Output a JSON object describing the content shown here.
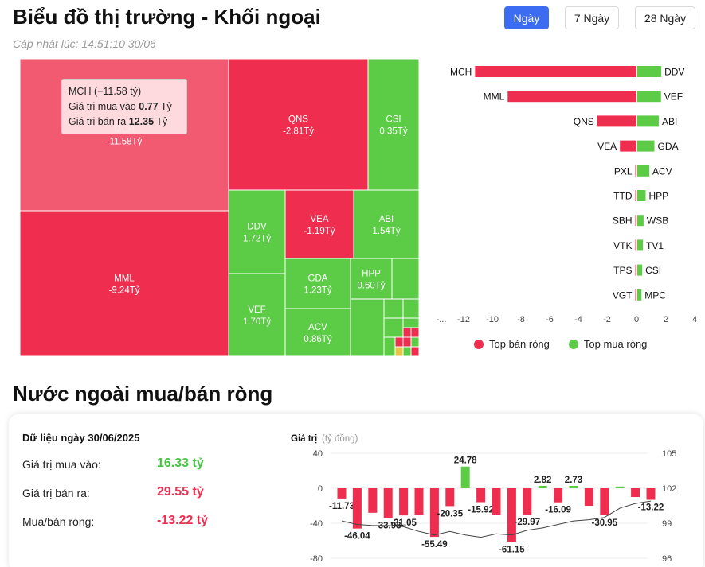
{
  "header": {
    "title": "Biểu đồ thị trường - Khối ngoại",
    "updated": "Cập nhật lúc: 14:51:10 30/06",
    "tabs": [
      {
        "label": "Ngày",
        "active": true
      },
      {
        "label": "7 Ngày",
        "active": false
      },
      {
        "label": "28 Ngày",
        "active": false
      }
    ]
  },
  "colors": {
    "sell": "#ee2d4f",
    "buy": "#5ccc47",
    "accent": "#3b6cf2"
  },
  "treemap": {
    "tiles": [
      {
        "code": "MCH",
        "value": "-11.58Tỷ",
        "side": "sell"
      },
      {
        "code": "MML",
        "value": "-9.24Tỷ",
        "side": "sell"
      },
      {
        "code": "QNS",
        "value": "-2.81Tỷ",
        "side": "sell"
      },
      {
        "code": "CSI",
        "value": "0.35Tỷ",
        "side": "buy"
      },
      {
        "code": "DDV",
        "value": "1.72Tỷ",
        "side": "buy"
      },
      {
        "code": "VEF",
        "value": "1.70Tỷ",
        "side": "buy"
      },
      {
        "code": "VEA",
        "value": "-1.19Tỷ",
        "side": "sell"
      },
      {
        "code": "ABI",
        "value": "1.54Tỷ",
        "side": "buy"
      },
      {
        "code": "GDA",
        "value": "1.23Tỷ",
        "side": "buy"
      },
      {
        "code": "HPP",
        "value": "0.60Tỷ",
        "side": "buy"
      },
      {
        "code": "ACV",
        "value": "0.86Tỷ",
        "side": "buy"
      }
    ],
    "tooltip": {
      "head": "MCH (−11.58 tỷ)",
      "buy_label": "Giá trị mua vào",
      "buy_value": "0.77",
      "sell_label": "Giá trị bán ra",
      "sell_value": "12.35",
      "unit": "Tỷ"
    }
  },
  "chart_data": [
    {
      "type": "bar",
      "orientation": "horizontal",
      "sell_labels": [
        "MCH",
        "MML",
        "QNS",
        "VEA",
        "PXL",
        "TTD",
        "SBH",
        "VTK",
        "TPS",
        "VGT"
      ],
      "sell_values": [
        -11.58,
        -9.24,
        -2.81,
        -1.19,
        -0.02,
        -0.02,
        -0.02,
        -0.02,
        -0.02,
        -0.02
      ],
      "buy_labels": [
        "DDV",
        "VEF",
        "ABI",
        "GDA",
        "ACV",
        "HPP",
        "WSB",
        "TV1",
        "CSI",
        "MPC"
      ],
      "buy_values": [
        1.72,
        1.7,
        1.54,
        1.23,
        0.86,
        0.6,
        0.45,
        0.4,
        0.35,
        0.3
      ],
      "xticks": [
        "-...",
        "-12",
        "-10",
        "-8",
        "-6",
        "-4",
        "-2",
        "0",
        "2",
        "4"
      ],
      "xlim": [
        -13,
        4
      ],
      "legend": [
        "Top bán ròng",
        "Top mua ròng"
      ],
      "legend_position": "bottom"
    },
    {
      "type": "bar",
      "ylabel": "Giá trị",
      "yunit": "(tỷ đồng)",
      "yticks_left": [
        "40",
        "0",
        "-40",
        "-80"
      ],
      "yticks_right": [
        "105",
        "102",
        "99",
        "96"
      ],
      "ylim_left": [
        -80,
        40
      ],
      "ylim_right": [
        96,
        105
      ],
      "values": [
        -11.73,
        -46.04,
        -28,
        -33.93,
        -31.05,
        -30,
        -55.49,
        -20.35,
        24.78,
        -15.92,
        -30,
        -61.15,
        -29.97,
        2.82,
        -16.09,
        2.73,
        -20,
        -30.95,
        2,
        -10,
        -13.22
      ],
      "labels": [
        "-11.73",
        "-46.04",
        "",
        "-33.93",
        "-31.05",
        "",
        "-55.49",
        "-20.35",
        "24.78",
        "-15.92",
        "",
        "-61.15",
        "-29.97",
        "2.82",
        "-16.09",
        "2.73",
        "",
        "-30.95",
        "",
        "",
        "-13.22"
      ],
      "line_values": [
        99.2,
        98.9,
        98.8,
        98.8,
        98.7,
        98.3,
        98.0,
        98.3,
        98.0,
        97.8,
        98.1,
        98.0,
        98.4,
        98.6,
        98.9,
        99.2,
        99.3,
        99.5,
        100.3,
        100.7,
        100.9
      ]
    }
  ],
  "summary": {
    "title": "Dữ liệu ngày 30/06/2025",
    "rows": [
      {
        "label": "Giá trị mua vào:",
        "value": "16.33 tỷ",
        "tone": "green"
      },
      {
        "label": "Giá trị bán ra:",
        "value": "29.55 tỷ",
        "tone": "red"
      },
      {
        "label": "Mua/bán ròng:",
        "value": "-13.22 tỷ",
        "tone": "red"
      }
    ]
  },
  "section2": {
    "title": "Nước ngoài mua/bán ròng"
  }
}
